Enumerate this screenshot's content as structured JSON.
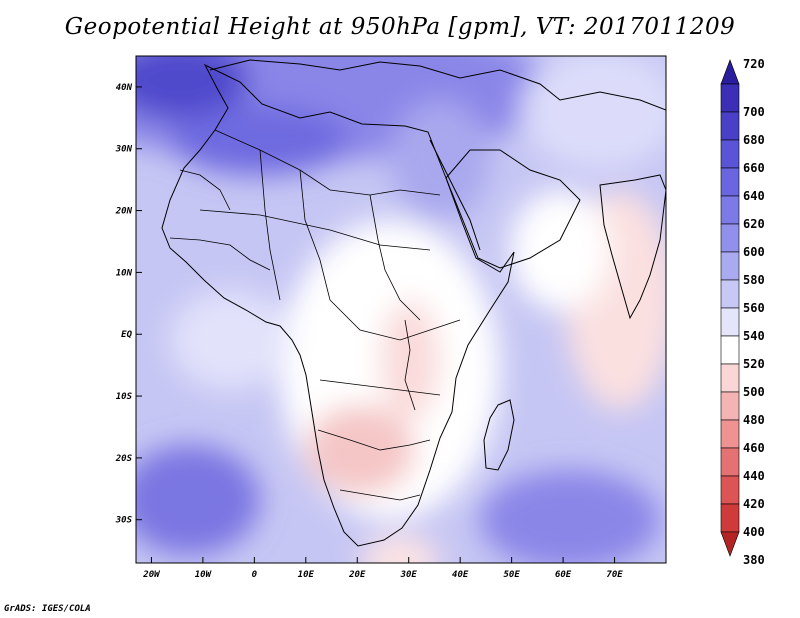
{
  "title": "Geopotential Height at 950hPa [gpm], VT: 2017011209",
  "credit": "GrADS: IGES/COLA",
  "axes": {
    "lat_ticks": [
      {
        "label": "40N",
        "lat": 40
      },
      {
        "label": "30N",
        "lat": 30
      },
      {
        "label": "20N",
        "lat": 20
      },
      {
        "label": "10N",
        "lat": 10
      },
      {
        "label": "EQ",
        "lat": 0
      },
      {
        "label": "10S",
        "lat": -10
      },
      {
        "label": "20S",
        "lat": -20
      },
      {
        "label": "30S",
        "lat": -30
      }
    ],
    "lon_ticks": [
      {
        "label": "20W",
        "lon": -20
      },
      {
        "label": "10W",
        "lon": -10
      },
      {
        "label": "0",
        "lon": 0
      },
      {
        "label": "10E",
        "lon": 10
      },
      {
        "label": "20E",
        "lon": 20
      },
      {
        "label": "30E",
        "lon": 30
      },
      {
        "label": "40E",
        "lon": 40
      },
      {
        "label": "50E",
        "lon": 50
      },
      {
        "label": "60E",
        "lon": 60
      },
      {
        "label": "70E",
        "lon": 70
      }
    ],
    "lon_range": [
      -23,
      80
    ],
    "lat_range": [
      -37,
      45
    ]
  },
  "colorbar": {
    "levels": [
      "720",
      "700",
      "680",
      "660",
      "640",
      "620",
      "600",
      "580",
      "560",
      "540",
      "520",
      "500",
      "480",
      "460",
      "440",
      "420",
      "400",
      "380"
    ],
    "colors": [
      "#2a1e9e",
      "#3b2fb5",
      "#4a40c8",
      "#5a55d6",
      "#6a66e0",
      "#7c7ae6",
      "#9190eb",
      "#aaaaf0",
      "#c8c8f6",
      "#e4e4fb",
      "#ffffff",
      "#fbd6d6",
      "#f5b4b4",
      "#ee9292",
      "#e57272",
      "#dc5454",
      "#cf3a3a",
      "#b52424"
    ]
  },
  "colors": {
    "land_border": "#000000",
    "ocean_base": "#c6c6f4"
  }
}
